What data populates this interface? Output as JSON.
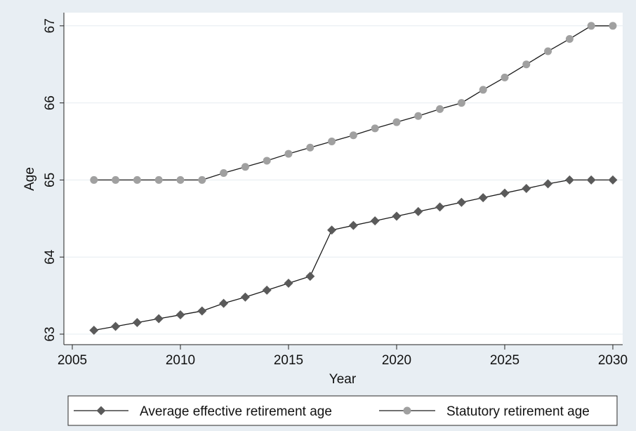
{
  "chart_data": {
    "type": "line",
    "title": "",
    "xlabel": "Year",
    "ylabel": "Age",
    "xlim": [
      2004,
      2030.5
    ],
    "ylim": [
      62.95,
      67.1
    ],
    "xticks": [
      "2005",
      "2010",
      "2015",
      "2020",
      "2025",
      "2030"
    ],
    "yticks": [
      "63",
      "64",
      "65",
      "66",
      "67"
    ],
    "grid": true,
    "legend_position": "bottom",
    "x": [
      2006,
      2007,
      2008,
      2009,
      2010,
      2011,
      2012,
      2013,
      2014,
      2015,
      2016,
      2017,
      2018,
      2019,
      2020,
      2021,
      2022,
      2023,
      2024,
      2025,
      2026,
      2027,
      2028,
      2029,
      2030
    ],
    "series": [
      {
        "name": "Average effective retirement age",
        "color": "#5a5a5a",
        "marker": "diamond",
        "values": [
          63.05,
          63.1,
          63.15,
          63.2,
          63.25,
          63.3,
          63.4,
          63.48,
          63.57,
          63.66,
          63.75,
          64.35,
          64.41,
          64.47,
          64.53,
          64.59,
          64.65,
          64.71,
          64.77,
          64.83,
          64.89,
          64.95,
          65.0,
          65.0,
          65.0
        ]
      },
      {
        "name": "Statutory retirement age",
        "color": "#a0a0a0",
        "marker": "circle",
        "values": [
          65.0,
          65.0,
          65.0,
          65.0,
          65.0,
          65.0,
          65.09,
          65.17,
          65.25,
          65.34,
          65.42,
          65.5,
          65.58,
          65.67,
          65.75,
          65.83,
          65.92,
          66.0,
          66.17,
          66.33,
          66.5,
          66.67,
          66.83,
          67.0,
          67.0
        ]
      }
    ]
  },
  "colors": {
    "background": "#e8eef3",
    "plot_background": "#ffffff",
    "grid": "#e6ecf0",
    "line": "#1a1a1a"
  }
}
